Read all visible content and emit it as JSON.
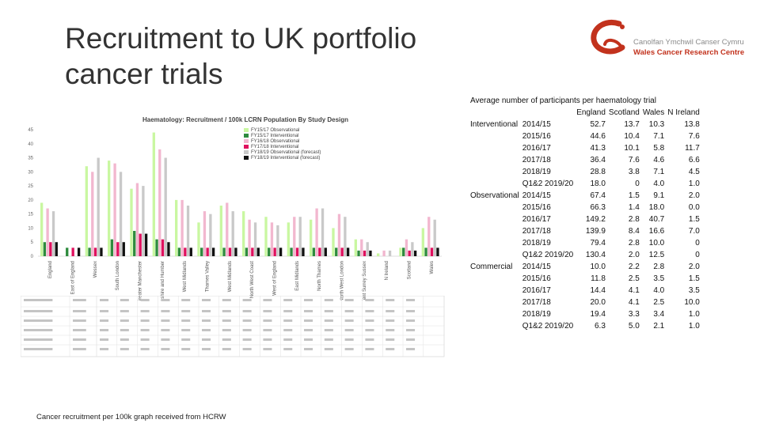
{
  "slide": {
    "title": "Recruitment to UK portfolio cancer trials",
    "caption": "Cancer recruitment per 100k graph received from HCRW"
  },
  "logo": {
    "line1": "Canolfan Ymchwil Canser Cymru",
    "line2": "Wales Cancer Research Centre",
    "color": "#c2321d"
  },
  "chart_data": {
    "type": "bar",
    "title": "Haematology: Recruitment / 100k LCRN Population By Study Design",
    "ylim": [
      0,
      45
    ],
    "yticks": [
      0,
      5,
      10,
      15,
      20,
      25,
      30,
      35,
      40,
      45
    ],
    "categories": [
      "England",
      "East of England",
      "Wessex",
      "South London",
      "Greater Manchester",
      "Yorkshire and Humber",
      "West Midlands",
      "Thames Valley",
      "West Midlands",
      "North West Coast",
      "West of England",
      "East Midlands",
      "North Thames",
      "North West London",
      "Kent Surrey Sussex",
      "N Ireland",
      "Scotland",
      "Wales"
    ],
    "series_colors": [
      "#c9f7a1",
      "#2e8b3e",
      "#f2b7cf",
      "#e0105e",
      "#c9c9c9",
      "#111111"
    ],
    "legend": [
      "FY15/17 Observational",
      "FY15/17 Interventional",
      "FY16/18 Observational",
      "FY17/18 Interventional",
      "FY18/19 Observational (forecast)",
      "FY18/19 Interventional (forecast)"
    ],
    "series": [
      {
        "name": "FY15/17 Observational",
        "values": [
          19,
          0,
          32,
          34,
          24,
          44,
          20,
          12,
          18,
          16,
          14,
          12,
          13,
          10,
          6,
          1,
          3,
          10
        ]
      },
      {
        "name": "FY15/17 Interventional",
        "values": [
          5,
          3,
          3,
          6,
          9,
          6,
          3,
          3,
          3,
          3,
          3,
          3,
          3,
          3,
          2,
          0,
          3,
          3
        ]
      },
      {
        "name": "FY16/18 Observational",
        "values": [
          17,
          0,
          30,
          33,
          26,
          38,
          20,
          16,
          19,
          13,
          12,
          14,
          17,
          15,
          6,
          2,
          6,
          14
        ]
      },
      {
        "name": "FY17/18 Interventional",
        "values": [
          5,
          3,
          3,
          5,
          8,
          6,
          3,
          3,
          3,
          3,
          3,
          3,
          3,
          3,
          2,
          0,
          2,
          3
        ]
      },
      {
        "name": "FY18/19 Observational (forecast)",
        "values": [
          16,
          0,
          35,
          30,
          25,
          35,
          18,
          15,
          16,
          12,
          11,
          14,
          17,
          14,
          5,
          2,
          5,
          13
        ]
      },
      {
        "name": "FY18/19 Interventional (forecast)",
        "values": [
          5,
          3,
          3,
          5,
          8,
          5,
          3,
          3,
          3,
          3,
          3,
          3,
          3,
          3,
          2,
          0,
          2,
          3
        ]
      }
    ]
  },
  "table": {
    "title": "Average number of participants per haematology trial",
    "columns": [
      "England",
      "Scotland",
      "Wales",
      "N Ireland"
    ],
    "groups": [
      {
        "label": "Interventional",
        "rows": [
          {
            "period": "2014/15",
            "values": [
              "52.7",
              "13.7",
              "10.3",
              "13.8"
            ]
          },
          {
            "period": "2015/16",
            "values": [
              "44.6",
              "10.4",
              "7.1",
              "7.6"
            ]
          },
          {
            "period": "2016/17",
            "values": [
              "41.3",
              "10.1",
              "5.8",
              "11.7"
            ]
          },
          {
            "period": "2017/18",
            "values": [
              "36.4",
              "7.6",
              "4.6",
              "6.6"
            ]
          },
          {
            "period": "2018/19",
            "values": [
              "28.8",
              "3.8",
              "7.1",
              "4.5"
            ]
          },
          {
            "period": "Q1&2 2019/20",
            "values": [
              "18.0",
              "0",
              "4.0",
              "1.0"
            ]
          }
        ]
      },
      {
        "label": "Observational",
        "rows": [
          {
            "period": "2014/15",
            "values": [
              "67.4",
              "1.5",
              "9.1",
              "2.0"
            ]
          },
          {
            "period": "2015/16",
            "values": [
              "66.3",
              "1.4",
              "18.0",
              "0.0"
            ]
          },
          {
            "period": "2016/17",
            "values": [
              "149.2",
              "2.8",
              "40.7",
              "1.5"
            ]
          },
          {
            "period": "2017/18",
            "values": [
              "139.9",
              "8.4",
              "16.6",
              "7.0"
            ]
          },
          {
            "period": "2018/19",
            "values": [
              "79.4",
              "2.8",
              "10.0",
              "0"
            ]
          },
          {
            "period": "Q1&2 2019/20",
            "values": [
              "130.4",
              "2.0",
              "12.5",
              "0"
            ]
          }
        ]
      },
      {
        "label": "Commercial",
        "rows": [
          {
            "period": "2014/15",
            "values": [
              "10.0",
              "2.2",
              "2.8",
              "2.0"
            ]
          },
          {
            "period": "2015/16",
            "values": [
              "11.8",
              "2.5",
              "3.5",
              "1.5"
            ]
          },
          {
            "period": "2016/17",
            "values": [
              "14.4",
              "4.1",
              "4.0",
              "3.5"
            ]
          },
          {
            "period": "2017/18",
            "values": [
              "20.0",
              "4.1",
              "2.5",
              "10.0"
            ]
          },
          {
            "period": "2018/19",
            "values": [
              "19.4",
              "3.3",
              "3.4",
              "1.0"
            ]
          },
          {
            "period": "Q1&2 2019/20",
            "values": [
              "6.3",
              "5.0",
              "2.1",
              "1.0"
            ]
          }
        ]
      }
    ]
  }
}
